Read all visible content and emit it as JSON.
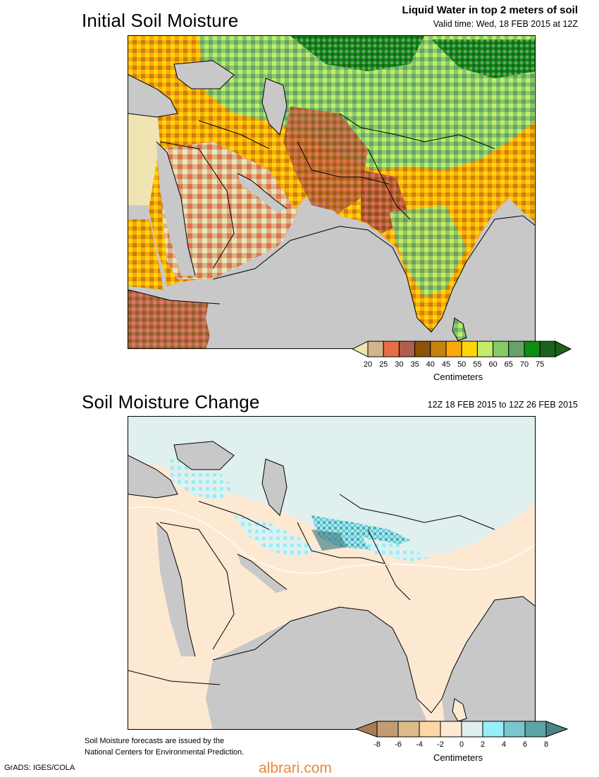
{
  "top": {
    "title": "Initial Soil Moisture",
    "subtitle": "Liquid Water in top 2 meters of soil",
    "valid_time": "Valid time: Wed, 18 FEB 2015 at 12Z",
    "colorbar": {
      "labels": [
        "20",
        "25",
        "30",
        "35",
        "40",
        "45",
        "50",
        "55",
        "60",
        "65",
        "70",
        "75"
      ],
      "colors": [
        "#f1e4b3",
        "#d2b58d",
        "#e76f47",
        "#b05e4a",
        "#8c5206",
        "#c5830c",
        "#fba90a",
        "#fed70b",
        "#c4ec6a",
        "#86cb66",
        "#6aa06b",
        "#0c8e13",
        "#1d621c"
      ],
      "units": "Centimeters"
    }
  },
  "bottom": {
    "title": "Soil Moisture Change",
    "period": "12Z 18 FEB 2015 to 12Z 26 FEB 2015",
    "colorbar": {
      "labels": [
        "-8",
        "-6",
        "-4",
        "-2",
        "0",
        "2",
        "4",
        "6",
        "8"
      ],
      "colors": [
        "#a67d55",
        "#c39d71",
        "#dcbb8b",
        "#fdd7a4",
        "#fde9d2",
        "#dff0ef",
        "#98eefa",
        "#7ac6ce",
        "#5da3a6",
        "#4a8487"
      ],
      "units": "Centimeters"
    }
  },
  "footer": {
    "note_line1": "Soil Moisture forecasts are issued by the",
    "note_line2": "National Centers for Environmental Prediction.",
    "credit": "GrADS: IGES/COLA",
    "watermark": "albrari.com"
  },
  "colors": {
    "land_gray": "#c8c8c8",
    "ocean_gray": "#c8c8c8"
  }
}
